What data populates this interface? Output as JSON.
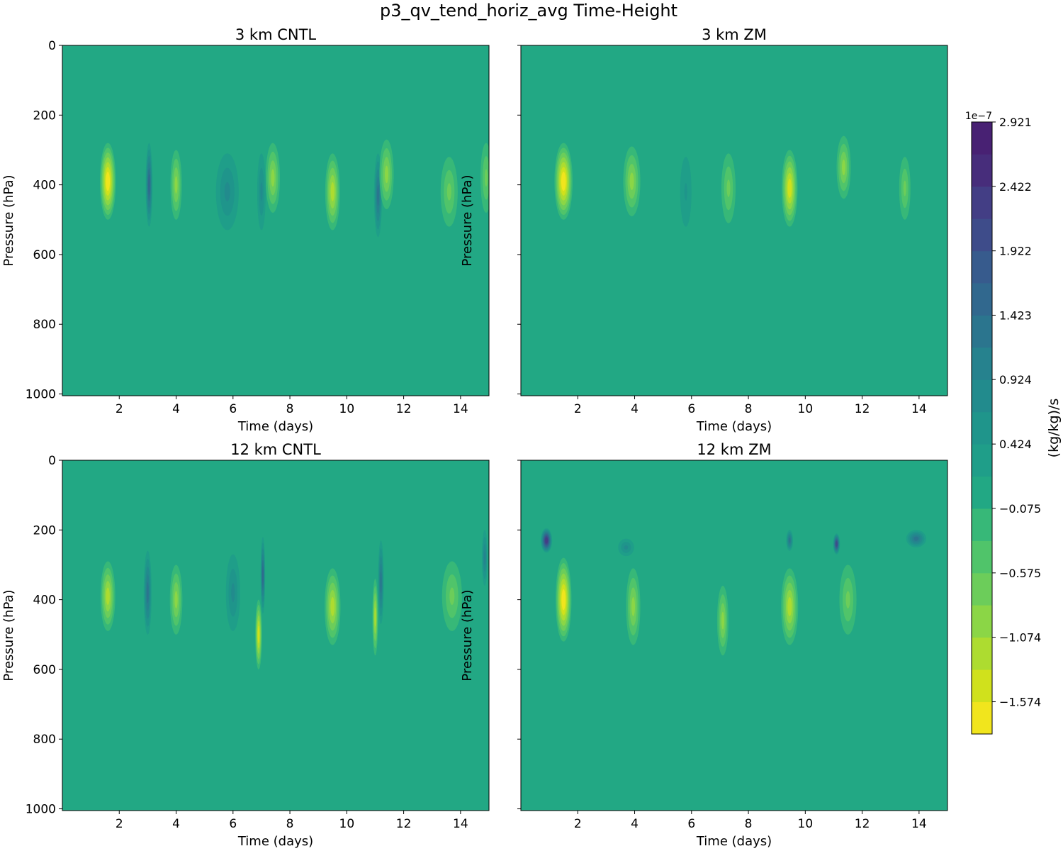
{
  "figure": {
    "title": "p3_qv_tend_horiz_avg Time-Height"
  },
  "colors": {
    "background": "#22a884",
    "frame": "#000000"
  },
  "chart_data": [
    {
      "type": "heatmap",
      "title": "3 km CNTL",
      "xlabel": "Time (days)",
      "ylabel": "Pressure (hPa)",
      "xlim": [
        0,
        15
      ],
      "ylim": [
        1005,
        0
      ],
      "xticks": [
        2,
        4,
        6,
        8,
        10,
        12,
        14
      ],
      "yticks": [
        0,
        200,
        400,
        600,
        800,
        1000
      ],
      "show_ytick_labels": true,
      "features": [
        {
          "t": 1.6,
          "p": 390,
          "dt": 0.28,
          "dp": 110,
          "v": -1.7
        },
        {
          "t": 3.05,
          "p": 400,
          "dt": 0.12,
          "dp": 120,
          "v": 1.5
        },
        {
          "t": 4.0,
          "p": 400,
          "dt": 0.2,
          "dp": 100,
          "v": -1.0
        },
        {
          "t": 5.8,
          "p": 420,
          "dt": 0.4,
          "dp": 110,
          "v": 0.8
        },
        {
          "t": 7.0,
          "p": 420,
          "dt": 0.15,
          "dp": 110,
          "v": 0.9
        },
        {
          "t": 7.4,
          "p": 380,
          "dt": 0.25,
          "dp": 100,
          "v": -0.9
        },
        {
          "t": 9.5,
          "p": 420,
          "dt": 0.26,
          "dp": 110,
          "v": -1.3
        },
        {
          "t": 11.1,
          "p": 430,
          "dt": 0.14,
          "dp": 120,
          "v": 1.2
        },
        {
          "t": 11.4,
          "p": 370,
          "dt": 0.25,
          "dp": 100,
          "v": -0.9
        },
        {
          "t": 13.6,
          "p": 420,
          "dt": 0.3,
          "dp": 100,
          "v": -0.6
        },
        {
          "t": 14.9,
          "p": 380,
          "dt": 0.2,
          "dp": 100,
          "v": -0.6
        }
      ]
    },
    {
      "type": "heatmap",
      "title": "3 km ZM",
      "xlabel": "Time (days)",
      "ylabel": "Pressure (hPa)",
      "xlim": [
        0,
        15
      ],
      "ylim": [
        1005,
        0
      ],
      "xticks": [
        2,
        4,
        6,
        8,
        10,
        12,
        14
      ],
      "yticks": [
        0,
        200,
        400,
        600,
        800,
        1000
      ],
      "show_ytick_labels": false,
      "features": [
        {
          "t": 1.5,
          "p": 390,
          "dt": 0.32,
          "dp": 110,
          "v": -1.6
        },
        {
          "t": 3.9,
          "p": 390,
          "dt": 0.3,
          "dp": 100,
          "v": -1.0
        },
        {
          "t": 5.8,
          "p": 420,
          "dt": 0.2,
          "dp": 100,
          "v": 0.5
        },
        {
          "t": 7.3,
          "p": 410,
          "dt": 0.25,
          "dp": 100,
          "v": -0.7
        },
        {
          "t": 9.45,
          "p": 410,
          "dt": 0.28,
          "dp": 110,
          "v": -1.4
        },
        {
          "t": 11.35,
          "p": 350,
          "dt": 0.25,
          "dp": 90,
          "v": -0.9
        },
        {
          "t": 13.5,
          "p": 410,
          "dt": 0.2,
          "dp": 90,
          "v": -0.6
        }
      ]
    },
    {
      "type": "heatmap",
      "title": "12 km CNTL",
      "xlabel": "Time (days)",
      "ylabel": "Pressure (hPa)",
      "xlim": [
        0,
        15
      ],
      "ylim": [
        1005,
        0
      ],
      "xticks": [
        2,
        4,
        6,
        8,
        10,
        12,
        14
      ],
      "yticks": [
        0,
        200,
        400,
        600,
        800,
        1000
      ],
      "show_ytick_labels": true,
      "features": [
        {
          "t": 1.6,
          "p": 390,
          "dt": 0.26,
          "dp": 100,
          "v": -1.3
        },
        {
          "t": 3.0,
          "p": 380,
          "dt": 0.14,
          "dp": 120,
          "v": 1.2
        },
        {
          "t": 4.0,
          "p": 400,
          "dt": 0.22,
          "dp": 100,
          "v": -1.0
        },
        {
          "t": 6.0,
          "p": 380,
          "dt": 0.25,
          "dp": 110,
          "v": 0.9
        },
        {
          "t": 6.9,
          "p": 500,
          "dt": 0.12,
          "dp": 100,
          "v": -1.4
        },
        {
          "t": 7.05,
          "p": 330,
          "dt": 0.08,
          "dp": 110,
          "v": 1.6
        },
        {
          "t": 9.5,
          "p": 420,
          "dt": 0.28,
          "dp": 110,
          "v": -1.2
        },
        {
          "t": 11.0,
          "p": 450,
          "dt": 0.1,
          "dp": 110,
          "v": -1.3
        },
        {
          "t": 11.2,
          "p": 350,
          "dt": 0.1,
          "dp": 120,
          "v": 1.4
        },
        {
          "t": 13.7,
          "p": 390,
          "dt": 0.35,
          "dp": 100,
          "v": -0.6
        },
        {
          "t": 14.85,
          "p": 280,
          "dt": 0.1,
          "dp": 80,
          "v": 1.0
        }
      ]
    },
    {
      "type": "heatmap",
      "title": "12 km ZM",
      "xlabel": "Time (days)",
      "ylabel": "Pressure (hPa)",
      "xlim": [
        0,
        15
      ],
      "ylim": [
        1005,
        0
      ],
      "xticks": [
        2,
        4,
        6,
        8,
        10,
        12,
        14
      ],
      "yticks": [
        0,
        200,
        400,
        600,
        800,
        1000
      ],
      "show_ytick_labels": false,
      "features": [
        {
          "t": 0.9,
          "p": 230,
          "dt": 0.2,
          "dp": 35,
          "v": 2.2
        },
        {
          "t": 1.5,
          "p": 400,
          "dt": 0.28,
          "dp": 120,
          "v": -1.6
        },
        {
          "t": 3.7,
          "p": 250,
          "dt": 0.28,
          "dp": 25,
          "v": 0.9
        },
        {
          "t": 3.95,
          "p": 420,
          "dt": 0.25,
          "dp": 110,
          "v": -0.9
        },
        {
          "t": 7.1,
          "p": 460,
          "dt": 0.2,
          "dp": 100,
          "v": -1.0
        },
        {
          "t": 9.45,
          "p": 420,
          "dt": 0.3,
          "dp": 110,
          "v": -1.1
        },
        {
          "t": 9.45,
          "p": 230,
          "dt": 0.12,
          "dp": 30,
          "v": 1.2
        },
        {
          "t": 11.1,
          "p": 240,
          "dt": 0.12,
          "dp": 30,
          "v": 2.0
        },
        {
          "t": 11.5,
          "p": 400,
          "dt": 0.3,
          "dp": 100,
          "v": -0.7
        },
        {
          "t": 13.9,
          "p": 225,
          "dt": 0.35,
          "dp": 25,
          "v": 1.2
        }
      ]
    }
  ],
  "colorbar": {
    "label": "(kg/kg)/s",
    "exponent_label": "1e−7",
    "levels": [
      -1.824,
      -1.574,
      -1.324,
      -1.074,
      -0.824,
      -0.575,
      -0.325,
      -0.075,
      0.175,
      0.424,
      0.674,
      0.924,
      1.174,
      1.423,
      1.673,
      1.922,
      2.172,
      2.422,
      2.672,
      2.921
    ],
    "colors": [
      "#f1e51d",
      "#d0e11c",
      "#addc30",
      "#8bd646",
      "#6ccd5a",
      "#50c46a",
      "#37b878",
      "#22a884",
      "#1f9e89",
      "#1f958b",
      "#228b8d",
      "#26828e",
      "#2b758e",
      "#31688e",
      "#375b8d",
      "#3e4c8a",
      "#433e85",
      "#472d7b",
      "#482173"
    ],
    "tick_values": [
      -1.574,
      -1.074,
      -0.575,
      -0.075,
      0.424,
      0.924,
      1.423,
      1.922,
      2.422,
      2.921
    ],
    "tick_labels": [
      "−1.574",
      "−1.074",
      "−0.575",
      "−0.075",
      "0.424",
      "0.924",
      "1.423",
      "1.922",
      "2.422",
      "2.921"
    ]
  }
}
